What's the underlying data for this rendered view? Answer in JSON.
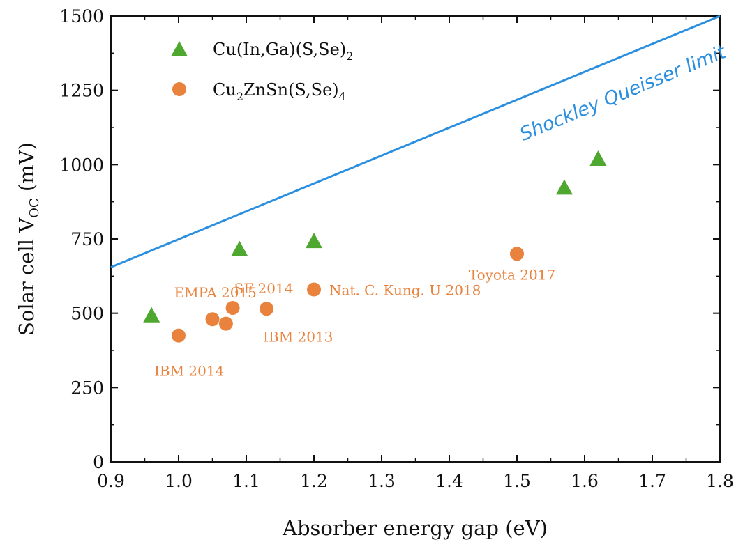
{
  "chart_data": {
    "type": "scatter",
    "title": "",
    "xlabel": "Absorber energy gap (eV)",
    "ylabel": {
      "main": "Solar cell V",
      "sub": "OC",
      "tail": " (mV)"
    },
    "xlim": [
      0.9,
      1.8
    ],
    "ylim": [
      0,
      1500
    ],
    "xticks": [
      "0.9",
      "1.0",
      "1.1",
      "1.2",
      "1.3",
      "1.4",
      "1.5",
      "1.6",
      "1.7",
      "1.8"
    ],
    "yticks": [
      "0",
      "250",
      "500",
      "750",
      "1000",
      "1250",
      "1500"
    ],
    "grid": false,
    "legend_position": "top-left",
    "series": [
      {
        "name": {
          "parts": [
            [
              "Cu(In,Ga)(S,Se)",
              false
            ],
            [
              "2",
              true
            ]
          ]
        },
        "marker": "triangle",
        "color": "#4ea72e",
        "points": [
          [
            0.96,
            495
          ],
          [
            1.09,
            718
          ],
          [
            1.2,
            745
          ],
          [
            1.57,
            925
          ],
          [
            1.62,
            1022
          ]
        ]
      },
      {
        "name": {
          "parts": [
            [
              "Cu",
              false
            ],
            [
              "2",
              true
            ],
            [
              "ZnSn(S,Se)",
              false
            ],
            [
              "4",
              true
            ]
          ]
        },
        "marker": "circle",
        "color": "#e8823c",
        "points": [
          [
            1.0,
            425
          ],
          [
            1.05,
            480
          ],
          [
            1.07,
            465
          ],
          [
            1.08,
            518
          ],
          [
            1.13,
            515
          ],
          [
            1.2,
            580
          ],
          [
            1.5,
            700
          ]
        ]
      }
    ],
    "line": {
      "name": "Shockley Queisser limit",
      "color": "#2b8fe0",
      "points": [
        [
          0.9,
          655
        ],
        [
          1.8,
          1500
        ]
      ]
    },
    "annotations": [
      {
        "text": "EMPA 2015",
        "x": 1.05,
        "y": 490
      },
      {
        "text": "SF 2014",
        "x": 1.08,
        "y": 518
      },
      {
        "text": "IBM 2014",
        "x": 1.0,
        "y": 425
      },
      {
        "text": "IBM 2013",
        "x": 1.13,
        "y": 515
      },
      {
        "text": "Nat. C. Kung. U 2018",
        "x": 1.2,
        "y": 580
      },
      {
        "text": "Toyota 2017",
        "x": 1.5,
        "y": 700
      }
    ]
  }
}
